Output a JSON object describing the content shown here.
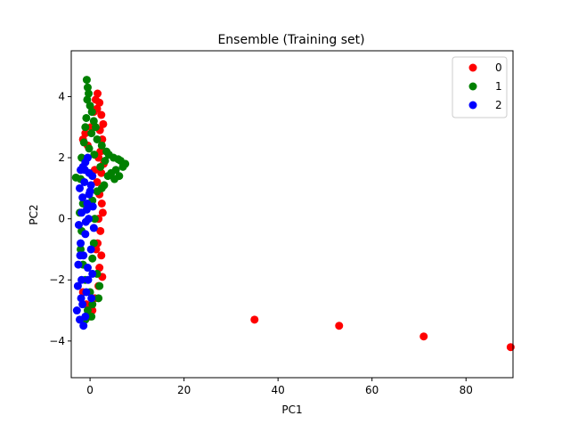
{
  "chart_data": {
    "type": "scatter",
    "title": "Ensemble (Training set)",
    "xlabel": "PC1",
    "ylabel": "PC2",
    "xlim": [
      -4,
      90
    ],
    "ylim": [
      -5.2,
      5.5
    ],
    "xticks": [
      0,
      20,
      40,
      60,
      80
    ],
    "yticks": [
      -4,
      -2,
      0,
      2,
      4
    ],
    "grid": false,
    "legend": "top-right",
    "series": [
      {
        "name": "0",
        "color": "#ff0000",
        "points": [
          [
            -1.5,
            2.6
          ],
          [
            -1.0,
            2.8
          ],
          [
            -0.5,
            2.4
          ],
          [
            0.2,
            3.0
          ],
          [
            0.8,
            3.5
          ],
          [
            1.2,
            3.9
          ],
          [
            1.6,
            4.1
          ],
          [
            2.0,
            3.8
          ],
          [
            2.4,
            3.4
          ],
          [
            2.8,
            3.1
          ],
          [
            2.6,
            2.6
          ],
          [
            2.2,
            2.2
          ],
          [
            1.8,
            2.0
          ],
          [
            2.9,
            1.8
          ],
          [
            2.4,
            1.5
          ],
          [
            1.5,
            1.2
          ],
          [
            2.0,
            0.8
          ],
          [
            2.5,
            0.5
          ],
          [
            1.8,
            0.0
          ],
          [
            2.2,
            -0.4
          ],
          [
            1.6,
            -0.8
          ],
          [
            2.4,
            -1.2
          ],
          [
            2.0,
            -1.6
          ],
          [
            2.6,
            -1.9
          ],
          [
            1.8,
            -2.2
          ],
          [
            1.0,
            -2.6
          ],
          [
            0.5,
            -3.0
          ],
          [
            -0.2,
            -3.2
          ],
          [
            -0.8,
            -2.8
          ],
          [
            -1.5,
            -2.4
          ],
          [
            1.5,
            3.6
          ],
          [
            2.1,
            2.9
          ],
          [
            1.0,
            1.6
          ],
          [
            2.7,
            0.2
          ],
          [
            1.3,
            -1.0
          ],
          [
            35.0,
            -3.3
          ],
          [
            53.0,
            -3.5
          ],
          [
            71.0,
            -3.85
          ],
          [
            89.5,
            -4.2
          ]
        ]
      },
      {
        "name": "1",
        "color": "#008000",
        "points": [
          [
            -0.7,
            4.55
          ],
          [
            -0.5,
            4.3
          ],
          [
            -0.3,
            4.1
          ],
          [
            -0.6,
            3.9
          ],
          [
            0.0,
            3.7
          ],
          [
            0.4,
            3.5
          ],
          [
            -0.8,
            3.3
          ],
          [
            0.8,
            3.2
          ],
          [
            1.2,
            3.0
          ],
          [
            -1.0,
            3.0
          ],
          [
            0.3,
            2.8
          ],
          [
            1.5,
            2.6
          ],
          [
            -1.3,
            2.5
          ],
          [
            2.5,
            2.4
          ],
          [
            3.5,
            2.2
          ],
          [
            4.0,
            2.1
          ],
          [
            -1.8,
            2.0
          ],
          [
            5.0,
            2.0
          ],
          [
            6.0,
            1.95
          ],
          [
            6.5,
            1.9
          ],
          [
            7.5,
            1.8
          ],
          [
            7.0,
            1.7
          ],
          [
            5.5,
            1.6
          ],
          [
            4.5,
            1.5
          ],
          [
            3.8,
            1.4
          ],
          [
            6.2,
            1.4
          ],
          [
            5.2,
            1.3
          ],
          [
            -3.0,
            1.35
          ],
          [
            -2.0,
            1.3
          ],
          [
            3.0,
            1.1
          ],
          [
            2.5,
            1.0
          ],
          [
            1.5,
            0.9
          ],
          [
            0.5,
            0.6
          ],
          [
            -1.5,
            0.5
          ],
          [
            -2.2,
            0.2
          ],
          [
            1.0,
            0.0
          ],
          [
            -1.8,
            -0.4
          ],
          [
            0.8,
            -0.8
          ],
          [
            -2.0,
            -1.0
          ],
          [
            0.5,
            -1.3
          ],
          [
            -1.5,
            -1.5
          ],
          [
            1.5,
            -1.8
          ],
          [
            -1.0,
            -2.0
          ],
          [
            2.0,
            -2.2
          ],
          [
            0.0,
            -2.4
          ],
          [
            1.8,
            -2.6
          ],
          [
            0.5,
            -2.8
          ],
          [
            -0.5,
            -3.0
          ],
          [
            0.3,
            -3.2
          ],
          [
            -1.0,
            -3.3
          ],
          [
            2.2,
            1.7
          ],
          [
            3.2,
            1.9
          ],
          [
            -0.2,
            2.3
          ],
          [
            0.9,
            2.1
          ]
        ]
      },
      {
        "name": "2",
        "color": "#0000ff",
        "points": [
          [
            -0.5,
            2.0
          ],
          [
            -1.0,
            1.85
          ],
          [
            -1.5,
            1.7
          ],
          [
            -2.0,
            1.6
          ],
          [
            -0.2,
            1.5
          ],
          [
            0.5,
            1.4
          ],
          [
            -1.2,
            1.2
          ],
          [
            -2.2,
            1.0
          ],
          [
            0.0,
            0.9
          ],
          [
            -1.6,
            0.7
          ],
          [
            -0.6,
            0.5
          ],
          [
            0.6,
            0.4
          ],
          [
            -1.8,
            0.2
          ],
          [
            -0.3,
            0.0
          ],
          [
            -2.4,
            -0.2
          ],
          [
            0.8,
            -0.3
          ],
          [
            -1.0,
            -0.5
          ],
          [
            -2.0,
            -0.8
          ],
          [
            0.2,
            -1.0
          ],
          [
            -1.4,
            -1.2
          ],
          [
            -2.5,
            -1.5
          ],
          [
            -0.5,
            -1.6
          ],
          [
            0.5,
            -1.8
          ],
          [
            -1.8,
            -2.0
          ],
          [
            -2.6,
            -2.2
          ],
          [
            -0.8,
            -2.4
          ],
          [
            0.3,
            -2.6
          ],
          [
            -1.6,
            -2.8
          ],
          [
            -2.8,
            -3.0
          ],
          [
            -1.0,
            -3.2
          ],
          [
            -2.2,
            -3.3
          ],
          [
            -1.4,
            -3.5
          ],
          [
            -0.2,
            0.8
          ],
          [
            -0.9,
            -0.1
          ],
          [
            0.2,
            1.1
          ],
          [
            -1.1,
            1.6
          ],
          [
            -2.1,
            -1.2
          ],
          [
            -0.4,
            -2.0
          ],
          [
            -1.9,
            -2.6
          ],
          [
            -0.7,
            0.3
          ]
        ]
      }
    ]
  }
}
